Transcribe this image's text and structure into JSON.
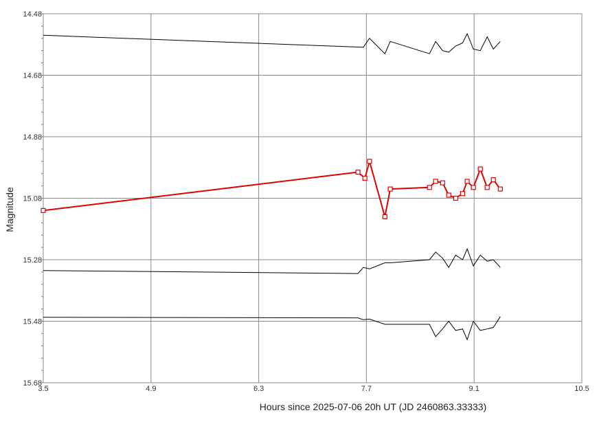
{
  "chart_data": {
    "type": "line",
    "xlabel": "Hours since 2025-07-06 20h UT (JD 2460863.33333)",
    "ylabel": "Magnitude",
    "xlim": [
      3.5,
      10.5
    ],
    "ylim": [
      14.48,
      15.68
    ],
    "y_inverted": true,
    "grid": true,
    "x_ticks": [
      "3.5",
      "4.9",
      "6.3",
      "7.7",
      "9.1",
      "10.5"
    ],
    "y_ticks": [
      "14.48",
      "14.68",
      "14.88",
      "15.08",
      "15.28",
      "15.48",
      "15.68"
    ],
    "series": [
      {
        "color": "#000000",
        "marker": "none",
        "x": [
          3.5,
          7.66,
          7.74,
          7.94,
          8.01,
          8.52,
          8.6,
          8.69,
          8.77,
          8.86,
          8.95,
          9.01,
          9.09,
          9.18,
          9.27,
          9.35,
          9.44
        ],
        "y": [
          14.55,
          14.589,
          14.56,
          14.61,
          14.57,
          14.61,
          14.57,
          14.6,
          14.605,
          14.585,
          14.575,
          14.545,
          14.595,
          14.6,
          14.555,
          14.595,
          14.57
        ]
      },
      {
        "color": "#e00000",
        "marker": "square",
        "x": [
          3.5,
          7.59,
          7.68,
          7.74,
          7.94,
          8.01,
          8.52,
          8.6,
          8.69,
          8.77,
          8.86,
          8.95,
          9.01,
          9.09,
          9.18,
          9.27,
          9.35,
          9.44
        ],
        "y": [
          15.12,
          14.995,
          15.015,
          14.96,
          15.14,
          15.05,
          15.045,
          15.025,
          15.03,
          15.07,
          15.08,
          15.065,
          15.025,
          15.045,
          14.985,
          15.045,
          15.02,
          15.05
        ]
      },
      {
        "color": "#000000",
        "marker": "none",
        "x": [
          3.5,
          7.59,
          7.66,
          7.74,
          7.94,
          8.01,
          8.52,
          8.6,
          8.69,
          8.77,
          8.86,
          8.95,
          9.01,
          9.09,
          9.18,
          9.27,
          9.35,
          9.44
        ],
        "y": [
          15.315,
          15.325,
          15.305,
          15.31,
          15.29,
          15.29,
          15.28,
          15.255,
          15.275,
          15.305,
          15.265,
          15.28,
          15.245,
          15.3,
          15.265,
          15.285,
          15.28,
          15.305
        ]
      },
      {
        "color": "#000000",
        "marker": "none",
        "x": [
          3.5,
          7.59,
          7.66,
          7.74,
          7.94,
          8.01,
          8.52,
          8.6,
          8.69,
          8.77,
          8.86,
          8.95,
          9.01,
          9.09,
          9.18,
          9.27,
          9.35,
          9.44
        ],
        "y": [
          15.467,
          15.469,
          15.475,
          15.473,
          15.49,
          15.49,
          15.49,
          15.53,
          15.505,
          15.48,
          15.51,
          15.505,
          15.54,
          15.48,
          15.51,
          15.505,
          15.5,
          15.465
        ]
      }
    ]
  }
}
